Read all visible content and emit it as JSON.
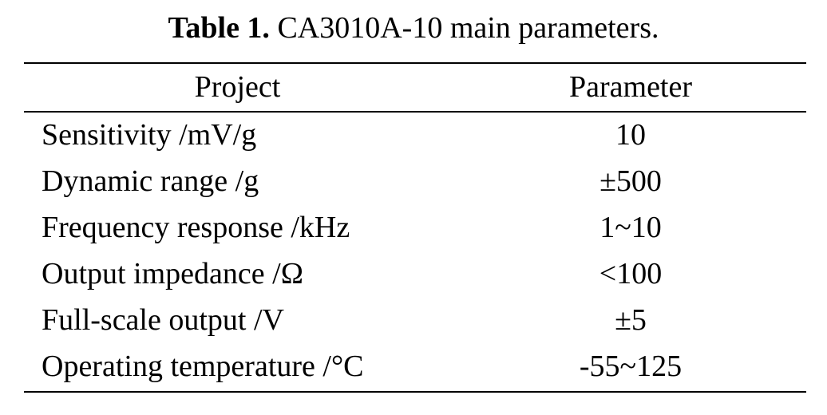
{
  "caption": {
    "label": "Table 1.",
    "text": " CA3010A-10 main parameters."
  },
  "table": {
    "headers": {
      "project": "Project",
      "parameter": "Parameter"
    },
    "rows": [
      {
        "project": "Sensitivity /mV/g",
        "parameter": "10"
      },
      {
        "project": "Dynamic range /g",
        "parameter": "±500"
      },
      {
        "project": "Frequency response /kHz",
        "parameter": "1~10"
      },
      {
        "project": "Output impedance /Ω",
        "parameter": "<100"
      },
      {
        "project": "Full-scale output /V",
        "parameter": "±5"
      },
      {
        "project": "Operating temperature /°C",
        "parameter": "-55~125"
      }
    ]
  }
}
